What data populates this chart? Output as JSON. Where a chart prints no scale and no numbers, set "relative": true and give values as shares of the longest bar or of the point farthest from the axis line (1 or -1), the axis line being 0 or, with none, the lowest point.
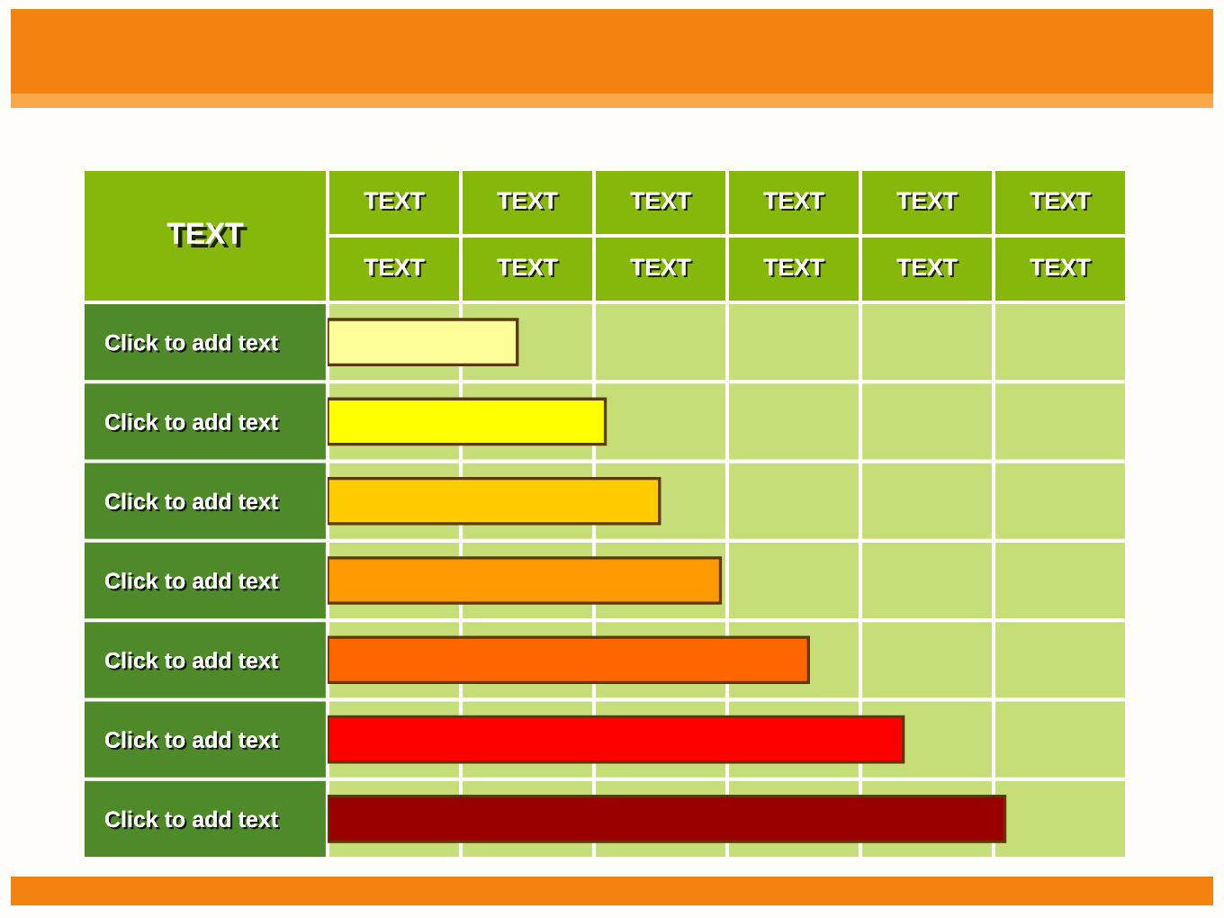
{
  "chart_data": {
    "type": "bar",
    "orientation": "horizontal",
    "relative": true,
    "grid": true,
    "ylabel": "TEXT",
    "annotations": [
      "TEXT",
      "TEXT",
      "TEXT",
      "TEXT",
      "TEXT",
      "TEXT",
      "TEXT",
      "TEXT",
      "TEXT",
      "TEXT",
      "TEXT",
      "TEXT"
    ],
    "categories": [
      "Click to add text",
      "Click to add text",
      "Click to add text",
      "Click to add text",
      "Click to add text",
      "Click to add text",
      "Click to add text"
    ],
    "values": [
      0.28,
      0.41,
      0.49,
      0.58,
      0.71,
      0.85,
      1
    ],
    "colors": [
      "#ffff99",
      "#ffff00",
      "#ffcc00",
      "#ff9900",
      "#ff6600",
      "#ff0000",
      "#990000"
    ]
  }
}
